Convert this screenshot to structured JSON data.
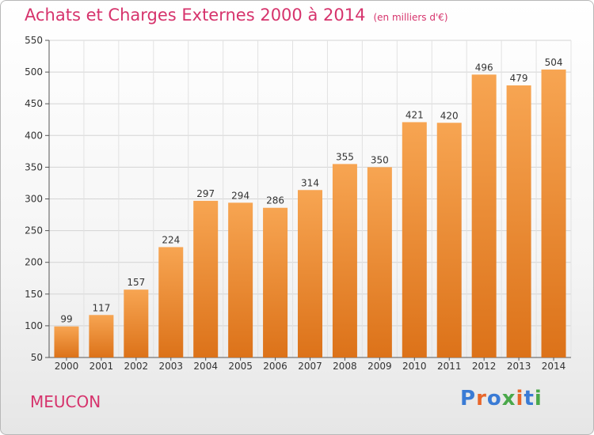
{
  "chart_data": {
    "type": "bar",
    "title": "Achats et Charges Externes 2000 à 2014",
    "subtitle": "(en milliers d'€)",
    "categories": [
      "2000",
      "2001",
      "2002",
      "2003",
      "2004",
      "2005",
      "2006",
      "2007",
      "2008",
      "2009",
      "2010",
      "2011",
      "2012",
      "2013",
      "2014"
    ],
    "values": [
      99,
      117,
      157,
      224,
      297,
      294,
      286,
      314,
      355,
      350,
      421,
      420,
      496,
      479,
      504
    ],
    "yticks": [
      50,
      100,
      150,
      200,
      250,
      300,
      350,
      400,
      450,
      500,
      550
    ],
    "ylim": [
      50,
      550
    ],
    "grid": true,
    "bar_color": "#f29232"
  },
  "footer": {
    "town": "MEUCON",
    "logo": "Proxiti"
  },
  "colors": {
    "title": "#d6336c",
    "logo_letters": [
      "#3a7bd5",
      "#e8662a",
      "#3a7bd5",
      "#4aa84a",
      "#e8662a",
      "#3a7bd5",
      "#4aa84a"
    ]
  }
}
